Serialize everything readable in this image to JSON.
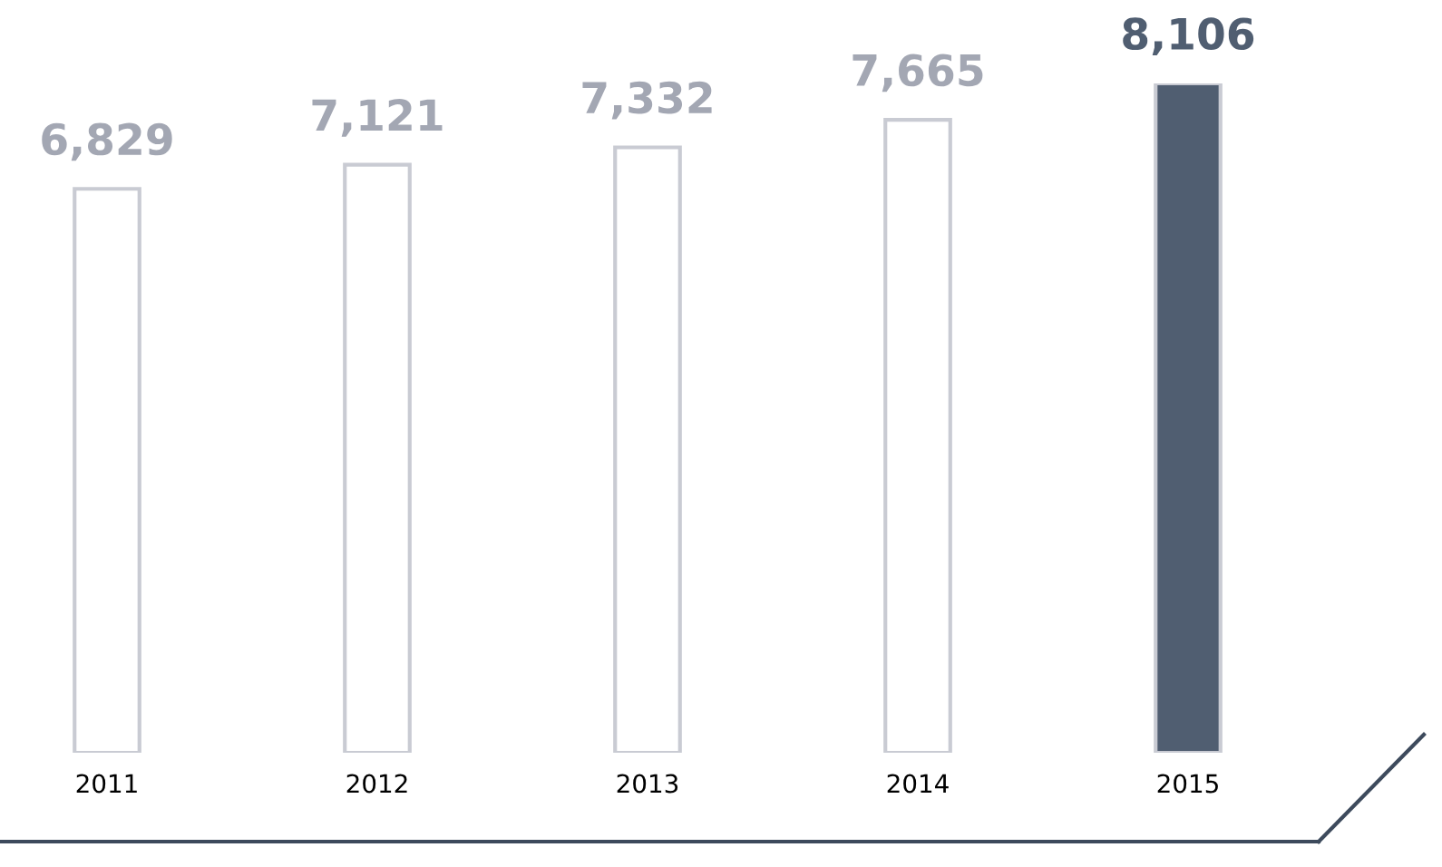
{
  "chart_data": {
    "type": "bar",
    "categories": [
      "2011",
      "2012",
      "2013",
      "2014",
      "2015"
    ],
    "values": [
      6829,
      7121,
      7332,
      7665,
      8106
    ],
    "colors": [
      "#ffffff",
      "#ffffff",
      "#ffffff",
      "#ffffff",
      "#505e71"
    ],
    "value_labels": [
      "6,829",
      "7,121",
      "7,332",
      "7,665",
      "8,106"
    ],
    "grid": false,
    "legend": false
  }
}
